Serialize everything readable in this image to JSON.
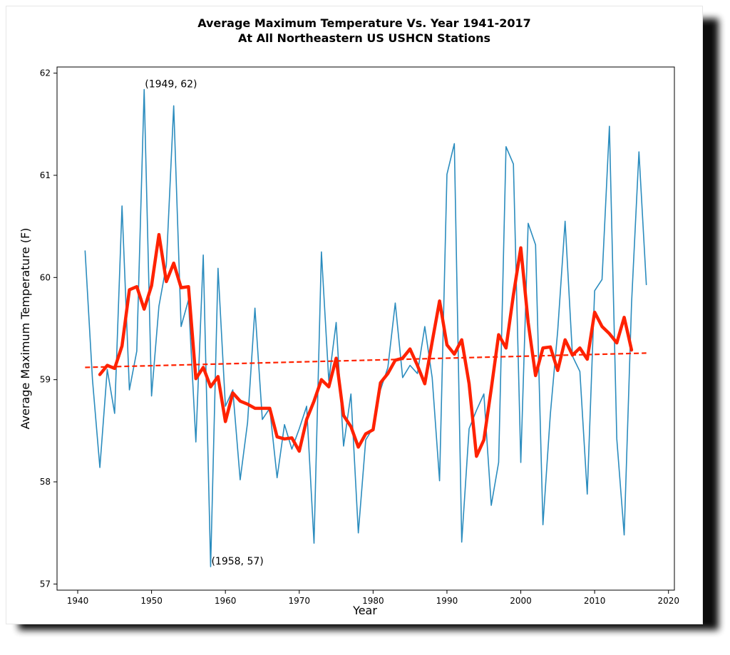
{
  "chart_data": {
    "type": "line",
    "title_lines": [
      "Average Maximum Temperature Vs. Year 1941-2017",
      "At All Northeastern US USHCN Stations"
    ],
    "xlabel": "Year",
    "ylabel": "Average Maximum Temperature (F)",
    "xlim": [
      1937.2,
      2020.8
    ],
    "ylim": [
      56.94,
      62.06
    ],
    "x_ticks": [
      1940,
      1950,
      1960,
      1970,
      1980,
      1990,
      2000,
      2010,
      2020
    ],
    "y_ticks": [
      57,
      58,
      59,
      60,
      61,
      62
    ],
    "grid": false,
    "series": [
      {
        "role": "annual",
        "color": "#2b8cbe",
        "x": [
          1941,
          1942,
          1943,
          1944,
          1945,
          1946,
          1947,
          1948,
          1949,
          1950,
          1951,
          1952,
          1953,
          1954,
          1955,
          1956,
          1957,
          1958,
          1959,
          1960,
          1961,
          1962,
          1963,
          1964,
          1965,
          1966,
          1967,
          1968,
          1969,
          1970,
          1971,
          1972,
          1973,
          1974,
          1975,
          1976,
          1977,
          1978,
          1979,
          1980,
          1981,
          1982,
          1983,
          1984,
          1985,
          1986,
          1987,
          1988,
          1989,
          1990,
          1991,
          1992,
          1993,
          1994,
          1995,
          1996,
          1997,
          1998,
          1999,
          2000,
          2001,
          2002,
          2003,
          2004,
          2005,
          2006,
          2007,
          2008,
          2009,
          2010,
          2011,
          2012,
          2013,
          2014,
          2015,
          2016,
          2017
        ],
        "values": [
          60.26,
          59.0,
          58.14,
          59.1,
          58.67,
          60.7,
          58.9,
          59.28,
          61.84,
          58.84,
          59.72,
          60.12,
          61.68,
          59.52,
          59.78,
          58.39,
          60.22,
          57.17,
          60.09,
          58.74,
          58.9,
          58.02,
          58.58,
          59.7,
          58.61,
          58.72,
          58.04,
          58.56,
          58.32,
          58.52,
          58.74,
          57.4,
          60.25,
          58.99,
          59.56,
          58.35,
          58.86,
          57.5,
          58.41,
          58.53,
          58.9,
          59.12,
          59.75,
          59.02,
          59.14,
          59.06,
          59.52,
          59.02,
          58.01,
          61.01,
          61.31,
          57.41,
          58.52,
          58.7,
          58.86,
          57.77,
          58.19,
          61.28,
          61.11,
          58.19,
          60.53,
          60.32,
          57.58,
          58.66,
          59.48,
          60.55,
          59.23,
          59.08,
          57.88,
          59.87,
          59.98,
          61.48,
          58.42,
          57.48,
          59.75,
          61.23,
          59.93
        ]
      },
      {
        "role": "moving-average",
        "color": "#ff2200",
        "x": [
          1943,
          1944,
          1945,
          1946,
          1947,
          1948,
          1949,
          1950,
          1951,
          1952,
          1953,
          1954,
          1955,
          1956,
          1957,
          1958,
          1959,
          1960,
          1961,
          1962,
          1963,
          1964,
          1965,
          1966,
          1967,
          1968,
          1969,
          1970,
          1971,
          1972,
          1973,
          1974,
          1975,
          1976,
          1977,
          1978,
          1979,
          1980,
          1981,
          1982,
          1983,
          1984,
          1985,
          1986,
          1987,
          1988,
          1989,
          1990,
          1991,
          1992,
          1993,
          1994,
          1995,
          1996,
          1997,
          1998,
          1999,
          2000,
          2001,
          2002,
          2003,
          2004,
          2005,
          2006,
          2007,
          2008,
          2009,
          2010,
          2011,
          2012,
          2013,
          2014,
          2015
        ],
        "values": [
          59.05,
          59.14,
          59.11,
          59.33,
          59.88,
          59.91,
          59.69,
          59.92,
          60.42,
          59.96,
          60.14,
          59.9,
          59.91,
          59.01,
          59.12,
          58.93,
          59.03,
          58.59,
          58.87,
          58.79,
          58.76,
          58.72,
          58.72,
          58.72,
          58.44,
          58.42,
          58.43,
          58.3,
          58.61,
          58.79,
          59.0,
          58.93,
          59.21,
          58.65,
          58.54,
          58.34,
          58.47,
          58.51,
          58.97,
          59.06,
          59.19,
          59.21,
          59.3,
          59.14,
          58.96,
          59.37,
          59.77,
          59.34,
          59.25,
          59.39,
          58.96,
          58.25,
          58.41,
          58.91,
          59.44,
          59.31,
          59.83,
          60.29,
          59.56,
          59.04,
          59.31,
          59.32,
          59.09,
          59.39,
          59.24,
          59.31,
          59.2,
          59.66,
          59.52,
          59.45,
          59.36,
          59.61,
          59.29
        ]
      },
      {
        "role": "trend",
        "color": "#ff2200",
        "style": "dashed",
        "x": [
          1941,
          2017
        ],
        "values": [
          59.12,
          59.26
        ]
      }
    ],
    "annotations": [
      {
        "text": "(1949, 62)",
        "x": 1949,
        "y": 61.84
      },
      {
        "text": "(1958, 57)",
        "x": 1958,
        "y": 57.17
      }
    ]
  }
}
